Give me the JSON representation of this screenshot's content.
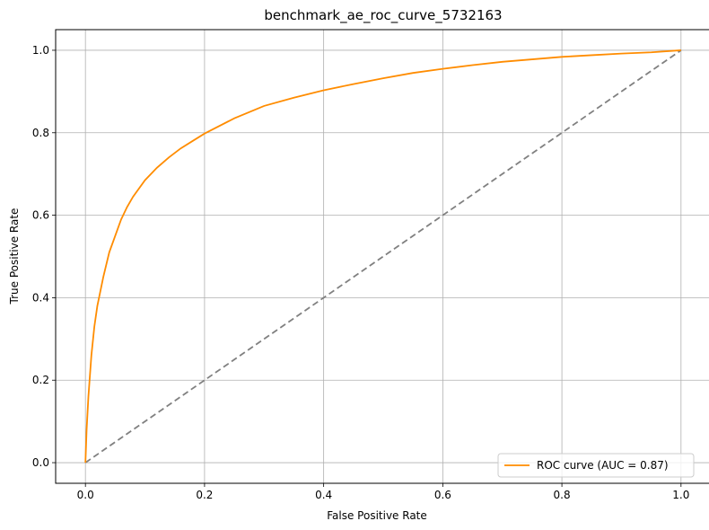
{
  "chart_data": {
    "type": "line",
    "title": "benchmark_ae_roc_curve_5732163",
    "xlabel": "False Positive Rate",
    "ylabel": "True Positive Rate",
    "xlim": [
      -0.05,
      1.05
    ],
    "ylim": [
      -0.05,
      1.05
    ],
    "xticks": [
      0.0,
      0.2,
      0.4,
      0.6,
      0.8,
      1.0
    ],
    "yticks": [
      0.0,
      0.2,
      0.4,
      0.6,
      0.8,
      1.0
    ],
    "xtick_labels": [
      "0.0",
      "0.2",
      "0.4",
      "0.6",
      "0.8",
      "1.0"
    ],
    "ytick_labels": [
      "0.0",
      "0.2",
      "0.4",
      "0.6",
      "0.8",
      "1.0"
    ],
    "grid": true,
    "legend_position": "lower-right",
    "series": [
      {
        "name": "ROC curve (AUC = 0.87)",
        "color": "#ff8c00",
        "style": "solid",
        "x": [
          0.0,
          0.002,
          0.005,
          0.01,
          0.015,
          0.02,
          0.03,
          0.04,
          0.05,
          0.06,
          0.07,
          0.08,
          0.1,
          0.12,
          0.14,
          0.16,
          0.18,
          0.2,
          0.25,
          0.3,
          0.35,
          0.4,
          0.45,
          0.5,
          0.55,
          0.6,
          0.65,
          0.7,
          0.75,
          0.8,
          0.85,
          0.9,
          0.95,
          1.0
        ],
        "y": [
          0.0,
          0.08,
          0.16,
          0.26,
          0.33,
          0.38,
          0.45,
          0.51,
          0.55,
          0.59,
          0.62,
          0.645,
          0.685,
          0.715,
          0.74,
          0.762,
          0.78,
          0.798,
          0.835,
          0.865,
          0.885,
          0.903,
          0.918,
          0.932,
          0.945,
          0.955,
          0.964,
          0.972,
          0.978,
          0.984,
          0.988,
          0.992,
          0.995,
          1.0
        ]
      },
      {
        "name": "",
        "color": "#808080",
        "style": "dashed",
        "x": [
          0.0,
          1.0
        ],
        "y": [
          0.0,
          1.0
        ]
      }
    ]
  },
  "colors": {
    "grid": "#b0b0b0",
    "axes": "#000000",
    "legend_border": "#cccccc"
  }
}
